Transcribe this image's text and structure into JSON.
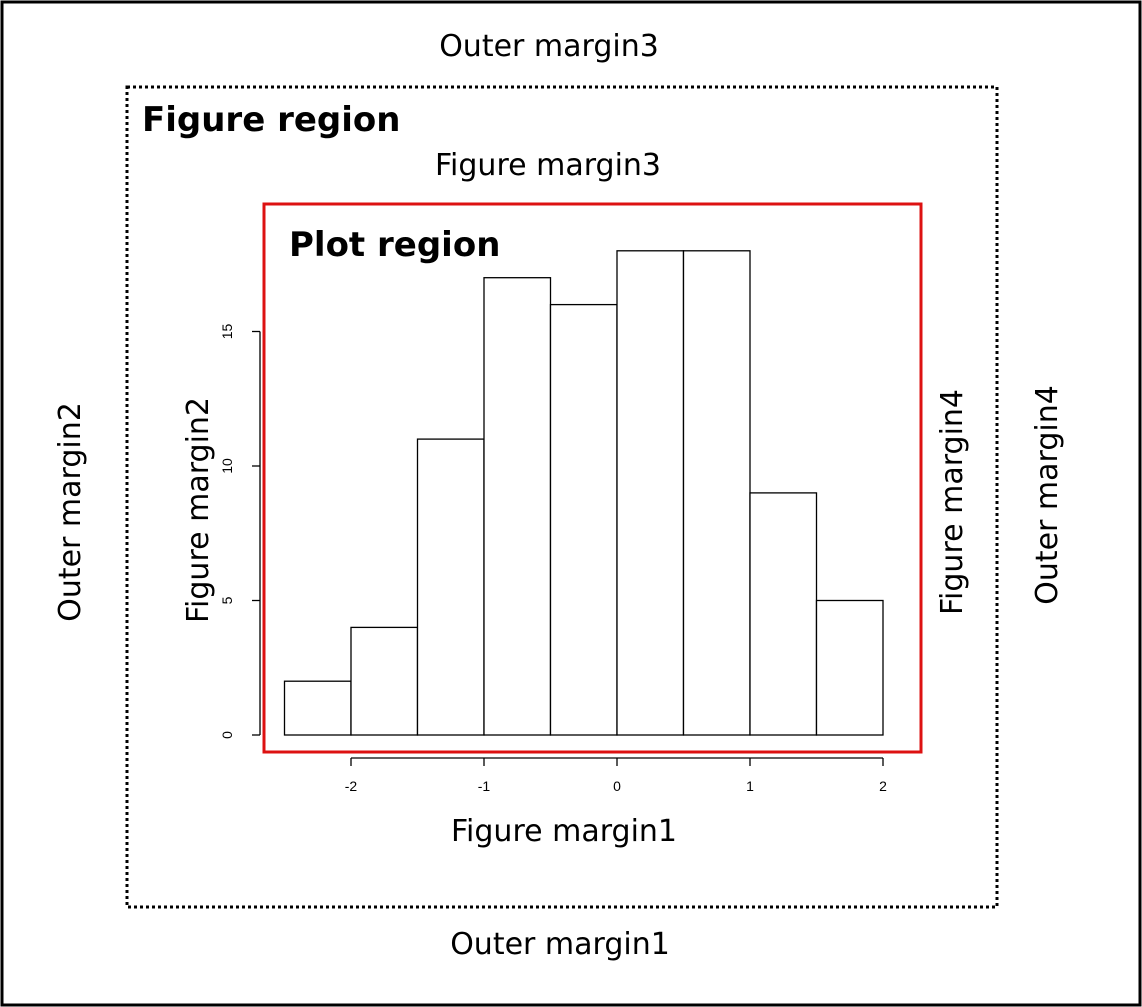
{
  "labels": {
    "outer_margin_1": "Outer margin1",
    "outer_margin_2": "Outer margin2",
    "outer_margin_3": "Outer margin3",
    "outer_margin_4": "Outer margin4",
    "figure_region": "Figure region",
    "figure_margin_1": "Figure margin1",
    "figure_margin_2": "Figure margin2",
    "figure_margin_3": "Figure margin3",
    "figure_margin_4": "Figure margin4",
    "plot_region": "Plot region"
  },
  "colors": {
    "plot_region_border": "#dd1111",
    "figure_region_border": "#000000",
    "outer_border": "#000000",
    "bar_fill": "#ffffff",
    "bar_stroke": "#000000"
  },
  "chart_data": {
    "type": "bar",
    "bins": [
      {
        "x0": -2.5,
        "x1": -2.0,
        "value": 2
      },
      {
        "x0": -2.0,
        "x1": -1.5,
        "value": 4
      },
      {
        "x0": -1.5,
        "x1": -1.0,
        "value": 11
      },
      {
        "x0": -1.0,
        "x1": -0.5,
        "value": 17
      },
      {
        "x0": -0.5,
        "x1": 0.0,
        "value": 16
      },
      {
        "x0": 0.0,
        "x1": 0.5,
        "value": 18
      },
      {
        "x0": 0.5,
        "x1": 1.0,
        "value": 18
      },
      {
        "x0": 1.0,
        "x1": 1.5,
        "value": 9
      },
      {
        "x0": 1.5,
        "x1": 2.0,
        "value": 5
      }
    ],
    "x_ticks": [
      "-2",
      "-1",
      "0",
      "1",
      "2"
    ],
    "y_ticks": [
      "0",
      "5",
      "10",
      "15"
    ]
  }
}
